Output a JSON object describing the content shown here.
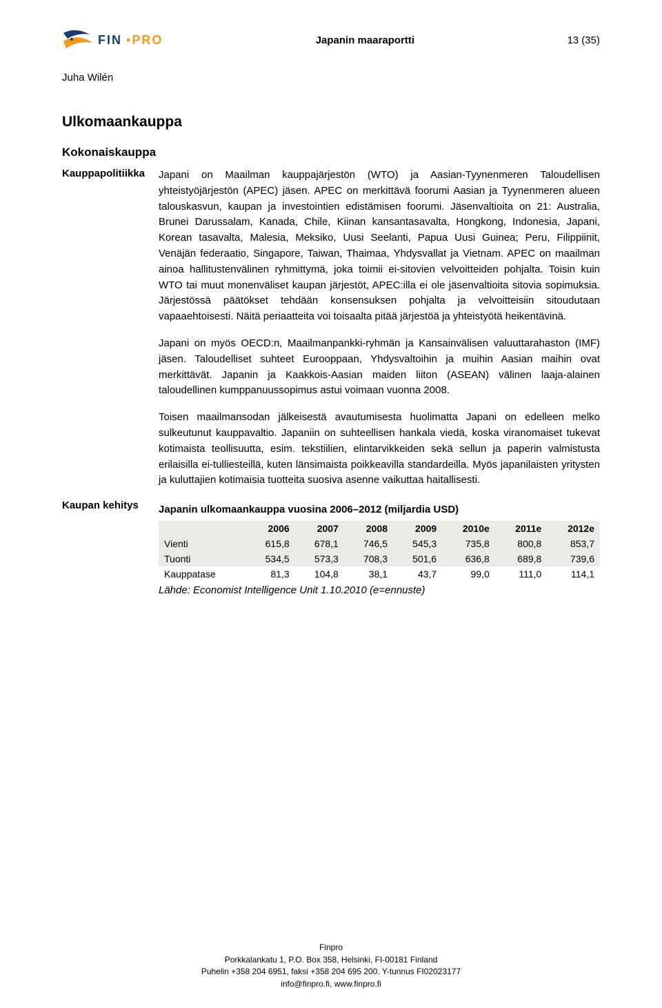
{
  "header": {
    "doc_title": "Japanin maaraportti",
    "page_indicator": "13 (35)"
  },
  "logo": {
    "fin": "FIN",
    "pro": "PRO"
  },
  "author": "Juha Wilén",
  "headings": {
    "h1": "Ulkomaankauppa",
    "h2": "Kokonaiskauppa",
    "h3": "Kauppapolitiikka",
    "side_label": "Kaupan kehitys"
  },
  "paras": {
    "p1": "Japani on Maailman kauppajärjestön (WTO) ja Aasian-Tyynenmeren Taloudellisen yhteistyöjärjestön (APEC) jäsen. APEC on merkittävä foorumi Aasian ja Tyynenmeren alueen talouskasvun, kaupan ja investointien edistämisen foorumi. Jäsenvaltioita on 21: Australia, Brunei Darussalam, Kanada, Chile, Kiinan kansantasavalta, Hongkong, Indonesia, Japani, Korean tasavalta, Malesia, Meksiko, Uusi Seelanti, Papua Uusi Guinea; Peru, Filippiinit, Venäjän federaatio, Singapore, Taiwan, Thaimaa, Yhdysvallat ja Vietnam. APEC on maailman ainoa hallitustenvälinen ryhmittymä, joka toimii ei-sitovien velvoitteiden pohjalta. Toisin kuin WTO tai muut monenväliset kaupan järjestöt, APEC:illa ei ole jäsenvaltioita sitovia sopimuksia. Järjestössä päätökset tehdään konsensuksen pohjalta ja velvoitteisiin sitoudutaan vapaaehtoisesti. Näitä periaatteita voi toisaalta pitää järjestöä ja yhteistyötä heikentävinä.",
    "p2": "Japani on myös OECD:n, Maailmanpankki-ryhmän ja Kansainvälisen valuuttarahaston (IMF) jäsen. Taloudelliset suhteet Eurooppaan, Yhdysvaltoihin ja muihin Aasian maihin ovat merkittävät. Japanin ja Kaakkois-Aasian maiden liiton (ASEAN) välinen laaja-alainen taloudellinen kumppanuussopimus astui voimaan vuonna 2008.",
    "p3": "Toisen maailmansodan jälkeisestä avautumisesta huolimatta Japani on edelleen melko sulkeutunut kauppavaltio. Japaniin on suhteellisen hankala viedä, koska viranomaiset tukevat kotimaista teollisuutta, esim. tekstiilien, elintarvikkeiden sekä sellun ja paperin valmistusta erilaisilla ei-tulliesteillä, kuten länsimaista poikkeavilla standardeilla. Myös japanilaisten yritysten ja kuluttajien kotimaisia tuotteita suosiva asenne vaikuttaa haitallisesti."
  },
  "table": {
    "title": "Japanin ulkomaankauppa vuosina 2006–2012 (miljardia USD)",
    "columns": [
      "",
      "2006",
      "2007",
      "2008",
      "2009",
      "2010e",
      "2011e",
      "2012e"
    ],
    "rows": [
      {
        "label": "Vienti",
        "cells": [
          "615,8",
          "678,1",
          "746,5",
          "545,3",
          "735,8",
          "800,8",
          "853,7"
        ],
        "shade": true
      },
      {
        "label": "Tuonti",
        "cells": [
          "534,5",
          "573,3",
          "708,3",
          "501,6",
          "636,8",
          "689,8",
          "739,6"
        ],
        "shade": true
      },
      {
        "label": "Kauppatase",
        "cells": [
          "81,3",
          "104,8",
          "38,1",
          "43,7",
          "99,0",
          "111,0",
          "114,1"
        ],
        "shade": false
      }
    ],
    "source": "Lähde: Economist Intelligence Unit 1.10.2010 (e=ennuste)"
  },
  "footer": {
    "l1": "Finpro",
    "l2": "Porkkalankatu 1, P.O. Box 358, Helsinki, FI-00181 Finland",
    "l3": "Puhelin +358 204 6951, faksi +358 204 695 200. Y-tunnus FI02023177",
    "l4": "info@finpro.fi, www.finpro.fi"
  },
  "colors": {
    "logo_blue": "#1b3c6e",
    "logo_orange": "#f39a1e",
    "table_shade": "#eceae6"
  }
}
